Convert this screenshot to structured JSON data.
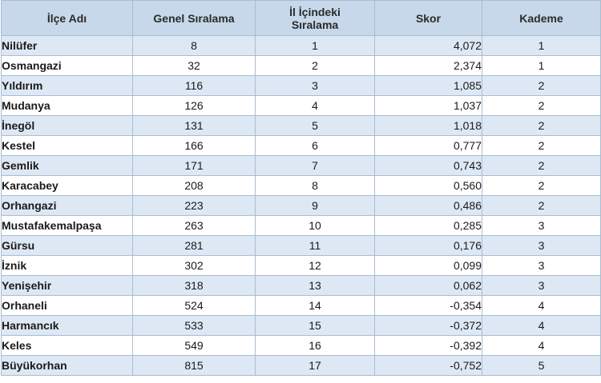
{
  "table": {
    "headers": [
      {
        "line1": "İlçe Adı",
        "line2": ""
      },
      {
        "line1": "Genel Sıralama",
        "line2": ""
      },
      {
        "line1": "İl İçindeki",
        "line2": "Sıralama"
      },
      {
        "line1": "Skor",
        "line2": ""
      },
      {
        "line1": "Kademe",
        "line2": ""
      }
    ],
    "rows": [
      {
        "name": "Nilüfer",
        "general_rank": "8",
        "province_rank": "1",
        "score": "4,072",
        "level": "1"
      },
      {
        "name": "Osmangazi",
        "general_rank": "32",
        "province_rank": "2",
        "score": "2,374",
        "level": "1"
      },
      {
        "name": "Yıldırım",
        "general_rank": "116",
        "province_rank": "3",
        "score": "1,085",
        "level": "2"
      },
      {
        "name": "Mudanya",
        "general_rank": "126",
        "province_rank": "4",
        "score": "1,037",
        "level": "2"
      },
      {
        "name": "İnegöl",
        "general_rank": "131",
        "province_rank": "5",
        "score": "1,018",
        "level": "2"
      },
      {
        "name": "Kestel",
        "general_rank": "166",
        "province_rank": "6",
        "score": "0,777",
        "level": "2"
      },
      {
        "name": "Gemlik",
        "general_rank": "171",
        "province_rank": "7",
        "score": "0,743",
        "level": "2"
      },
      {
        "name": "Karacabey",
        "general_rank": "208",
        "province_rank": "8",
        "score": "0,560",
        "level": "2"
      },
      {
        "name": "Orhangazi",
        "general_rank": "223",
        "province_rank": "9",
        "score": "0,486",
        "level": "2"
      },
      {
        "name": "Mustafakemalpaşa",
        "general_rank": "263",
        "province_rank": "10",
        "score": "0,285",
        "level": "3"
      },
      {
        "name": "Gürsu",
        "general_rank": "281",
        "province_rank": "11",
        "score": "0,176",
        "level": "3"
      },
      {
        "name": "İznik",
        "general_rank": "302",
        "province_rank": "12",
        "score": "0,099",
        "level": "3"
      },
      {
        "name": "Yenişehir",
        "general_rank": "318",
        "province_rank": "13",
        "score": "0,062",
        "level": "3"
      },
      {
        "name": "Orhaneli",
        "general_rank": "524",
        "province_rank": "14",
        "score": "-0,354",
        "level": "4"
      },
      {
        "name": "Harmancık",
        "general_rank": "533",
        "province_rank": "15",
        "score": "-0,372",
        "level": "4"
      },
      {
        "name": "Keles",
        "general_rank": "549",
        "province_rank": "16",
        "score": "-0,392",
        "level": "4"
      },
      {
        "name": "Büyükorhan",
        "general_rank": "815",
        "province_rank": "17",
        "score": "-0,752",
        "level": "5"
      }
    ]
  },
  "colors": {
    "header_bg": "#c6d8ea",
    "stripe_bg": "#dde8f4",
    "border": "#a9bdd0"
  }
}
